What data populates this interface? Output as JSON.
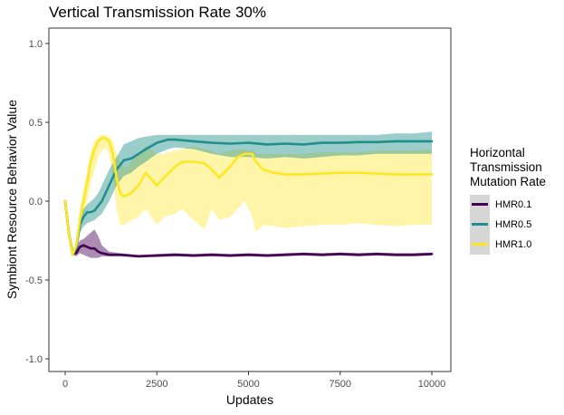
{
  "chart_data": {
    "type": "line",
    "title": "Vertical Transmission Rate 30%",
    "xlabel": "Updates",
    "ylabel": "Symbiont Resource Behavior Value",
    "xlim": [
      0,
      10000
    ],
    "ylim": [
      -1.0,
      1.0
    ],
    "xticks": [
      "0",
      "2500",
      "5000",
      "7500",
      "10000"
    ],
    "yticks": [
      "-1.0",
      "-0.5",
      "0.0",
      "0.5",
      "1.0"
    ],
    "grid": false,
    "legend": {
      "title": "Horizontal Transmission Mutation Rate",
      "title_lines": [
        "Horizontal",
        "Transmission",
        "Mutation Rate"
      ],
      "placement": "right"
    },
    "series": [
      {
        "name": "HMR0.1",
        "color": "#440154",
        "x": [
          0,
          100,
          200,
          300,
          400,
          500,
          600,
          700,
          800,
          900,
          1000,
          1200,
          1500,
          2000,
          2500,
          3000,
          3500,
          4000,
          4500,
          5000,
          5500,
          6000,
          6500,
          7000,
          7500,
          8000,
          8500,
          9000,
          9500,
          10000
        ],
        "y": [
          0.0,
          -0.2,
          -0.33,
          -0.33,
          -0.29,
          -0.28,
          -0.29,
          -0.3,
          -0.3,
          -0.32,
          -0.33,
          -0.34,
          -0.34,
          -0.35,
          -0.345,
          -0.34,
          -0.345,
          -0.34,
          -0.345,
          -0.34,
          -0.345,
          -0.34,
          -0.335,
          -0.34,
          -0.335,
          -0.34,
          -0.335,
          -0.34,
          -0.34,
          -0.335
        ],
        "lower": [
          0.0,
          -0.21,
          -0.34,
          -0.35,
          -0.33,
          -0.34,
          -0.35,
          -0.36,
          -0.36,
          -0.36,
          -0.35,
          -0.35,
          -0.35,
          -0.355,
          -0.355,
          -0.35,
          -0.355,
          -0.35,
          -0.355,
          -0.35,
          -0.355,
          -0.35,
          -0.345,
          -0.35,
          -0.345,
          -0.35,
          -0.345,
          -0.35,
          -0.35,
          -0.345
        ],
        "upper": [
          0.0,
          -0.19,
          -0.32,
          -0.29,
          -0.25,
          -0.24,
          -0.22,
          -0.2,
          -0.18,
          -0.22,
          -0.28,
          -0.32,
          -0.33,
          -0.34,
          -0.335,
          -0.33,
          -0.335,
          -0.33,
          -0.335,
          -0.33,
          -0.335,
          -0.33,
          -0.325,
          -0.33,
          -0.325,
          -0.33,
          -0.325,
          -0.33,
          -0.33,
          -0.325
        ]
      },
      {
        "name": "HMR0.5",
        "color": "#21908C",
        "x": [
          0,
          100,
          200,
          300,
          400,
          500,
          600,
          700,
          800,
          900,
          1000,
          1200,
          1400,
          1600,
          1800,
          2000,
          2200,
          2500,
          2800,
          3000,
          3500,
          4000,
          4500,
          5000,
          5500,
          6000,
          6500,
          7000,
          7500,
          8000,
          8500,
          9000,
          9500,
          10000
        ],
        "y": [
          0.0,
          -0.2,
          -0.34,
          -0.3,
          -0.15,
          -0.1,
          -0.07,
          -0.07,
          -0.06,
          -0.03,
          0.0,
          0.1,
          0.2,
          0.26,
          0.27,
          0.3,
          0.33,
          0.37,
          0.39,
          0.39,
          0.38,
          0.37,
          0.365,
          0.37,
          0.36,
          0.365,
          0.36,
          0.37,
          0.37,
          0.375,
          0.375,
          0.38,
          0.38,
          0.38
        ],
        "lower": [
          0.0,
          -0.21,
          -0.35,
          -0.32,
          -0.2,
          -0.16,
          -0.14,
          -0.13,
          -0.12,
          -0.1,
          -0.08,
          0.0,
          0.1,
          0.16,
          0.18,
          0.22,
          0.25,
          0.3,
          0.33,
          0.34,
          0.33,
          0.3,
          0.28,
          0.28,
          0.27,
          0.28,
          0.27,
          0.28,
          0.29,
          0.29,
          0.3,
          0.3,
          0.3,
          0.3
        ],
        "upper": [
          0.0,
          -0.19,
          -0.33,
          -0.27,
          -0.1,
          -0.05,
          -0.02,
          0.0,
          0.02,
          0.05,
          0.1,
          0.2,
          0.28,
          0.36,
          0.38,
          0.4,
          0.41,
          0.42,
          0.42,
          0.42,
          0.42,
          0.42,
          0.42,
          0.42,
          0.42,
          0.42,
          0.42,
          0.42,
          0.42,
          0.42,
          0.42,
          0.43,
          0.43,
          0.44
        ]
      },
      {
        "name": "HMR1.0",
        "color": "#FDE725",
        "x": [
          0,
          100,
          200,
          300,
          400,
          500,
          600,
          700,
          800,
          900,
          1000,
          1100,
          1200,
          1300,
          1400,
          1500,
          1600,
          1700,
          1800,
          2000,
          2200,
          2500,
          2700,
          3000,
          3200,
          3500,
          3800,
          4000,
          4200,
          4500,
          4700,
          4900,
          5100,
          5200,
          5400,
          5700,
          6000,
          6500,
          7000,
          7500,
          8000,
          8500,
          9000,
          9500,
          10000
        ],
        "y": [
          0.0,
          -0.2,
          -0.34,
          -0.28,
          -0.12,
          0.0,
          0.12,
          0.25,
          0.33,
          0.38,
          0.4,
          0.4,
          0.38,
          0.3,
          0.15,
          0.05,
          0.03,
          0.04,
          0.05,
          0.1,
          0.18,
          0.1,
          0.15,
          0.22,
          0.25,
          0.25,
          0.24,
          0.2,
          0.15,
          0.22,
          0.28,
          0.3,
          0.3,
          0.25,
          0.2,
          0.18,
          0.17,
          0.17,
          0.175,
          0.18,
          0.18,
          0.175,
          0.17,
          0.17,
          0.17
        ],
        "lower": [
          0.0,
          -0.21,
          -0.35,
          -0.32,
          -0.2,
          -0.1,
          0.0,
          0.12,
          0.2,
          0.28,
          0.32,
          0.34,
          0.3,
          0.15,
          -0.05,
          -0.15,
          -0.15,
          -0.14,
          -0.12,
          -0.1,
          -0.05,
          -0.15,
          -0.1,
          -0.08,
          -0.05,
          -0.12,
          -0.18,
          -0.05,
          -0.12,
          -0.1,
          -0.05,
          0.0,
          -0.1,
          -0.2,
          -0.15,
          -0.16,
          -0.17,
          -0.16,
          -0.15,
          -0.15,
          -0.14,
          -0.15,
          -0.16,
          -0.15,
          -0.15
        ],
        "upper": [
          0.0,
          -0.19,
          -0.33,
          -0.25,
          -0.05,
          0.08,
          0.2,
          0.32,
          0.38,
          0.41,
          0.42,
          0.42,
          0.41,
          0.38,
          0.3,
          0.25,
          0.22,
          0.22,
          0.25,
          0.3,
          0.35,
          0.3,
          0.3,
          0.32,
          0.33,
          0.35,
          0.33,
          0.32,
          0.3,
          0.32,
          0.33,
          0.33,
          0.32,
          0.3,
          0.3,
          0.3,
          0.3,
          0.3,
          0.31,
          0.31,
          0.31,
          0.32,
          0.32,
          0.32,
          0.33
        ]
      }
    ]
  }
}
